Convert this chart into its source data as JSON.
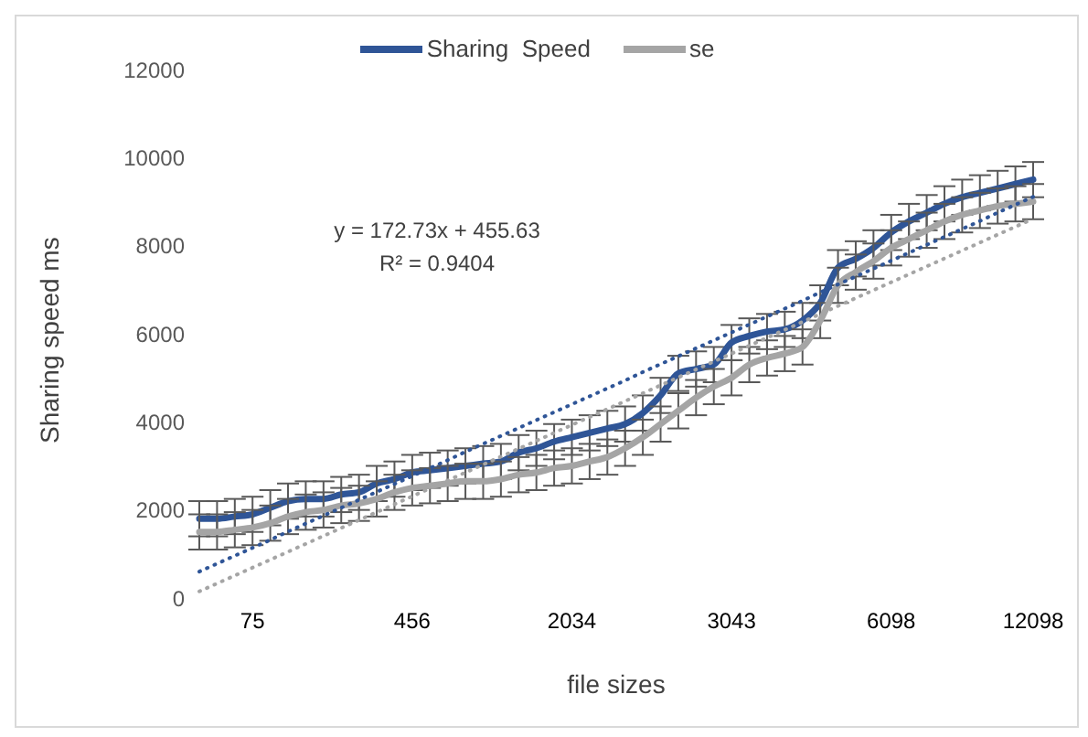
{
  "chart_data": {
    "type": "line",
    "xlabel": "file sizes",
    "ylabel": "Sharing speed ms",
    "categories": [
      null,
      null,
      null,
      "75",
      null,
      null,
      null,
      null,
      null,
      null,
      null,
      null,
      "456",
      null,
      null,
      null,
      null,
      null,
      null,
      null,
      null,
      "2034",
      null,
      null,
      null,
      null,
      null,
      null,
      null,
      null,
      "3043",
      null,
      null,
      null,
      null,
      null,
      null,
      null,
      null,
      "6098",
      null,
      null,
      null,
      null,
      null,
      null,
      null,
      "12098"
    ],
    "ylim": [
      0,
      12000
    ],
    "yticks": [
      0,
      2000,
      4000,
      6000,
      8000,
      10000,
      12000
    ],
    "grid": false,
    "legend": "top",
    "marker": "none",
    "annotations": [
      "y = 172.73x + 455.63",
      "R² = 0.9404"
    ],
    "series": [
      {
        "name": "Sharing  Speed",
        "color": "#2f5597",
        "line_style": "solid",
        "values": [
          1800,
          1800,
          1850,
          1900,
          2050,
          2200,
          2250,
          2250,
          2350,
          2400,
          2600,
          2700,
          2850,
          2900,
          2950,
          3000,
          3050,
          3100,
          3300,
          3400,
          3550,
          3650,
          3750,
          3850,
          3950,
          4200,
          4600,
          5100,
          5200,
          5300,
          5800,
          5950,
          6050,
          6100,
          6300,
          6700,
          7500,
          7700,
          7950,
          8300,
          8550,
          8750,
          8950,
          9100,
          9200,
          9300,
          9400,
          9500
        ],
        "errors": [
          400,
          400,
          400,
          400,
          400,
          400,
          400,
          400,
          400,
          400,
          400,
          400,
          400,
          400,
          400,
          400,
          400,
          400,
          400,
          400,
          400,
          400,
          400,
          400,
          400,
          400,
          400,
          400,
          400,
          400,
          400,
          400,
          400,
          400,
          400,
          400,
          400,
          400,
          400,
          400,
          400,
          400,
          400,
          400,
          400,
          400,
          400,
          400
        ]
      },
      {
        "name": "se",
        "color": "#a5a5a5",
        "line_style": "solid",
        "values": [
          1500,
          1500,
          1550,
          1600,
          1700,
          1850,
          1950,
          2000,
          2100,
          2150,
          2250,
          2400,
          2500,
          2550,
          2600,
          2650,
          2650,
          2700,
          2800,
          2850,
          2950,
          3000,
          3100,
          3200,
          3400,
          3650,
          3950,
          4250,
          4550,
          4800,
          5000,
          5300,
          5450,
          5550,
          5700,
          6300,
          7100,
          7400,
          7650,
          7950,
          8150,
          8350,
          8550,
          8700,
          8800,
          8900,
          8950,
          9000
        ],
        "errors": [
          400,
          400,
          400,
          400,
          400,
          400,
          400,
          400,
          400,
          400,
          400,
          400,
          400,
          400,
          400,
          400,
          400,
          400,
          400,
          400,
          400,
          400,
          400,
          400,
          400,
          400,
          400,
          400,
          400,
          400,
          400,
          400,
          400,
          400,
          400,
          400,
          400,
          400,
          400,
          400,
          400,
          400,
          400,
          400,
          400,
          400,
          400,
          400
        ]
      },
      {
        "type": "line",
        "color": "#2f5597",
        "line_style": "dotted",
        "values": [
          600,
          780,
          960,
          1140,
          1320,
          1510,
          1690,
          1870,
          2050,
          2230,
          2410,
          2590,
          2770,
          2950,
          3130,
          3320,
          3500,
          3680,
          3860,
          4040,
          4220,
          4400,
          4580,
          4760,
          4940,
          5130,
          5310,
          5490,
          5670,
          5850,
          6030,
          6210,
          6390,
          6570,
          6750,
          6940,
          7120,
          7300,
          7480,
          7660,
          7840,
          8020,
          8200,
          8380,
          8560,
          8750,
          8930,
          9110
        ]
      },
      {
        "type": "line",
        "color": "#a5a5a5",
        "line_style": "dotted",
        "values": [
          150,
          330,
          510,
          690,
          870,
          1050,
          1230,
          1410,
          1590,
          1770,
          1950,
          2130,
          2310,
          2490,
          2670,
          2850,
          3030,
          3210,
          3390,
          3570,
          3750,
          3930,
          4110,
          4290,
          4470,
          4650,
          4830,
          5010,
          5190,
          5370,
          5550,
          5730,
          5910,
          6090,
          6270,
          6450,
          6630,
          6810,
          6990,
          7170,
          7350,
          7530,
          7710,
          7890,
          8070,
          8250,
          8430,
          8610
        ]
      }
    ]
  }
}
